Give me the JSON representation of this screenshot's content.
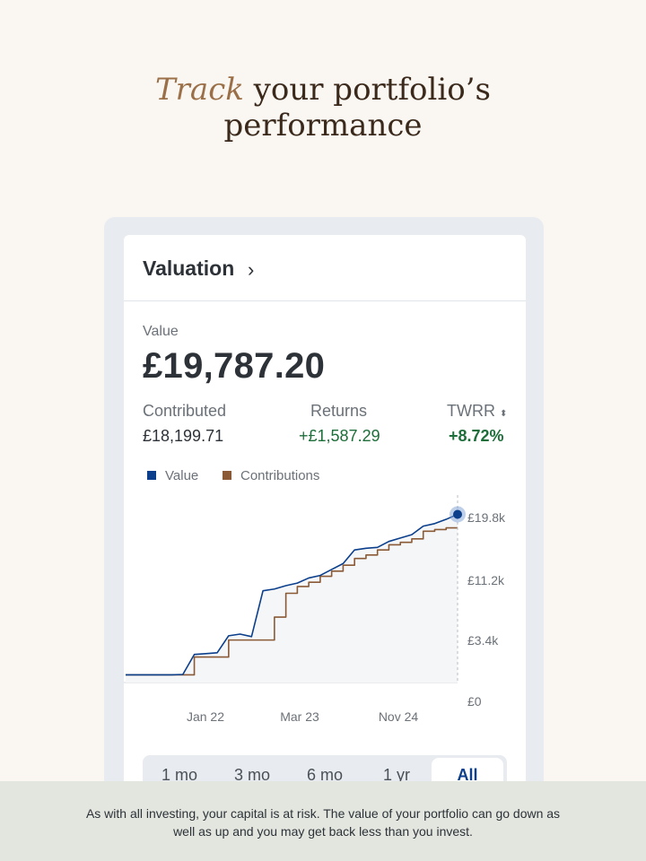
{
  "headline": {
    "accent": "Track",
    "rest": " your portfolio’s",
    "line2": "performance"
  },
  "card": {
    "title": "Valuation",
    "chevron": "›",
    "value_label": "Value",
    "value_amount": "£19,787.20",
    "metrics": [
      {
        "label": "Contributed",
        "value": "£18,199.71"
      },
      {
        "label": "Returns",
        "value": "+£1,587.29"
      },
      {
        "label": "TWRR",
        "sort_icon": "⬍",
        "value": "+8.72%"
      }
    ],
    "legend": [
      {
        "label": "Value",
        "color": "#0b3f8c"
      },
      {
        "label": "Contributions",
        "color": "#8a5a36"
      }
    ]
  },
  "chart_data": {
    "type": "line",
    "x_tick_labels": [
      "Jan 22",
      "Mar 23",
      "Nov 24"
    ],
    "y_tick_labels": [
      "£19.8k",
      "£11.2k",
      "£3.4k",
      "£0"
    ],
    "series": [
      {
        "name": "Value",
        "color": "#0b3f8c",
        "values": [
          900,
          900,
          900,
          900,
          900,
          950,
          3300,
          3400,
          3500,
          5500,
          5700,
          5400,
          10800,
          11000,
          11400,
          11700,
          12300,
          12600,
          13300,
          14000,
          15600,
          15800,
          15900,
          16600,
          17000,
          17400,
          18400,
          18700,
          19200,
          19787
        ]
      },
      {
        "name": "Contributions",
        "color": "#8a5a36",
        "values": [
          900,
          900,
          900,
          900,
          900,
          900,
          3000,
          3000,
          3000,
          5000,
          5000,
          5000,
          5000,
          7700,
          10500,
          11300,
          11800,
          12500,
          13100,
          13800,
          14600,
          15000,
          15600,
          16200,
          16500,
          16900,
          17800,
          18000,
          18200,
          18200
        ]
      }
    ],
    "ylim": [
      0,
      21000
    ],
    "grid": false
  },
  "segments": [
    "1 mo",
    "3 mo",
    "6 mo",
    "1 yr",
    "All"
  ],
  "active_segment": "All",
  "disclaimer": "As with all investing, your capital is at risk. The value of your portfolio can go down as well as up and you may get back less than you invest."
}
